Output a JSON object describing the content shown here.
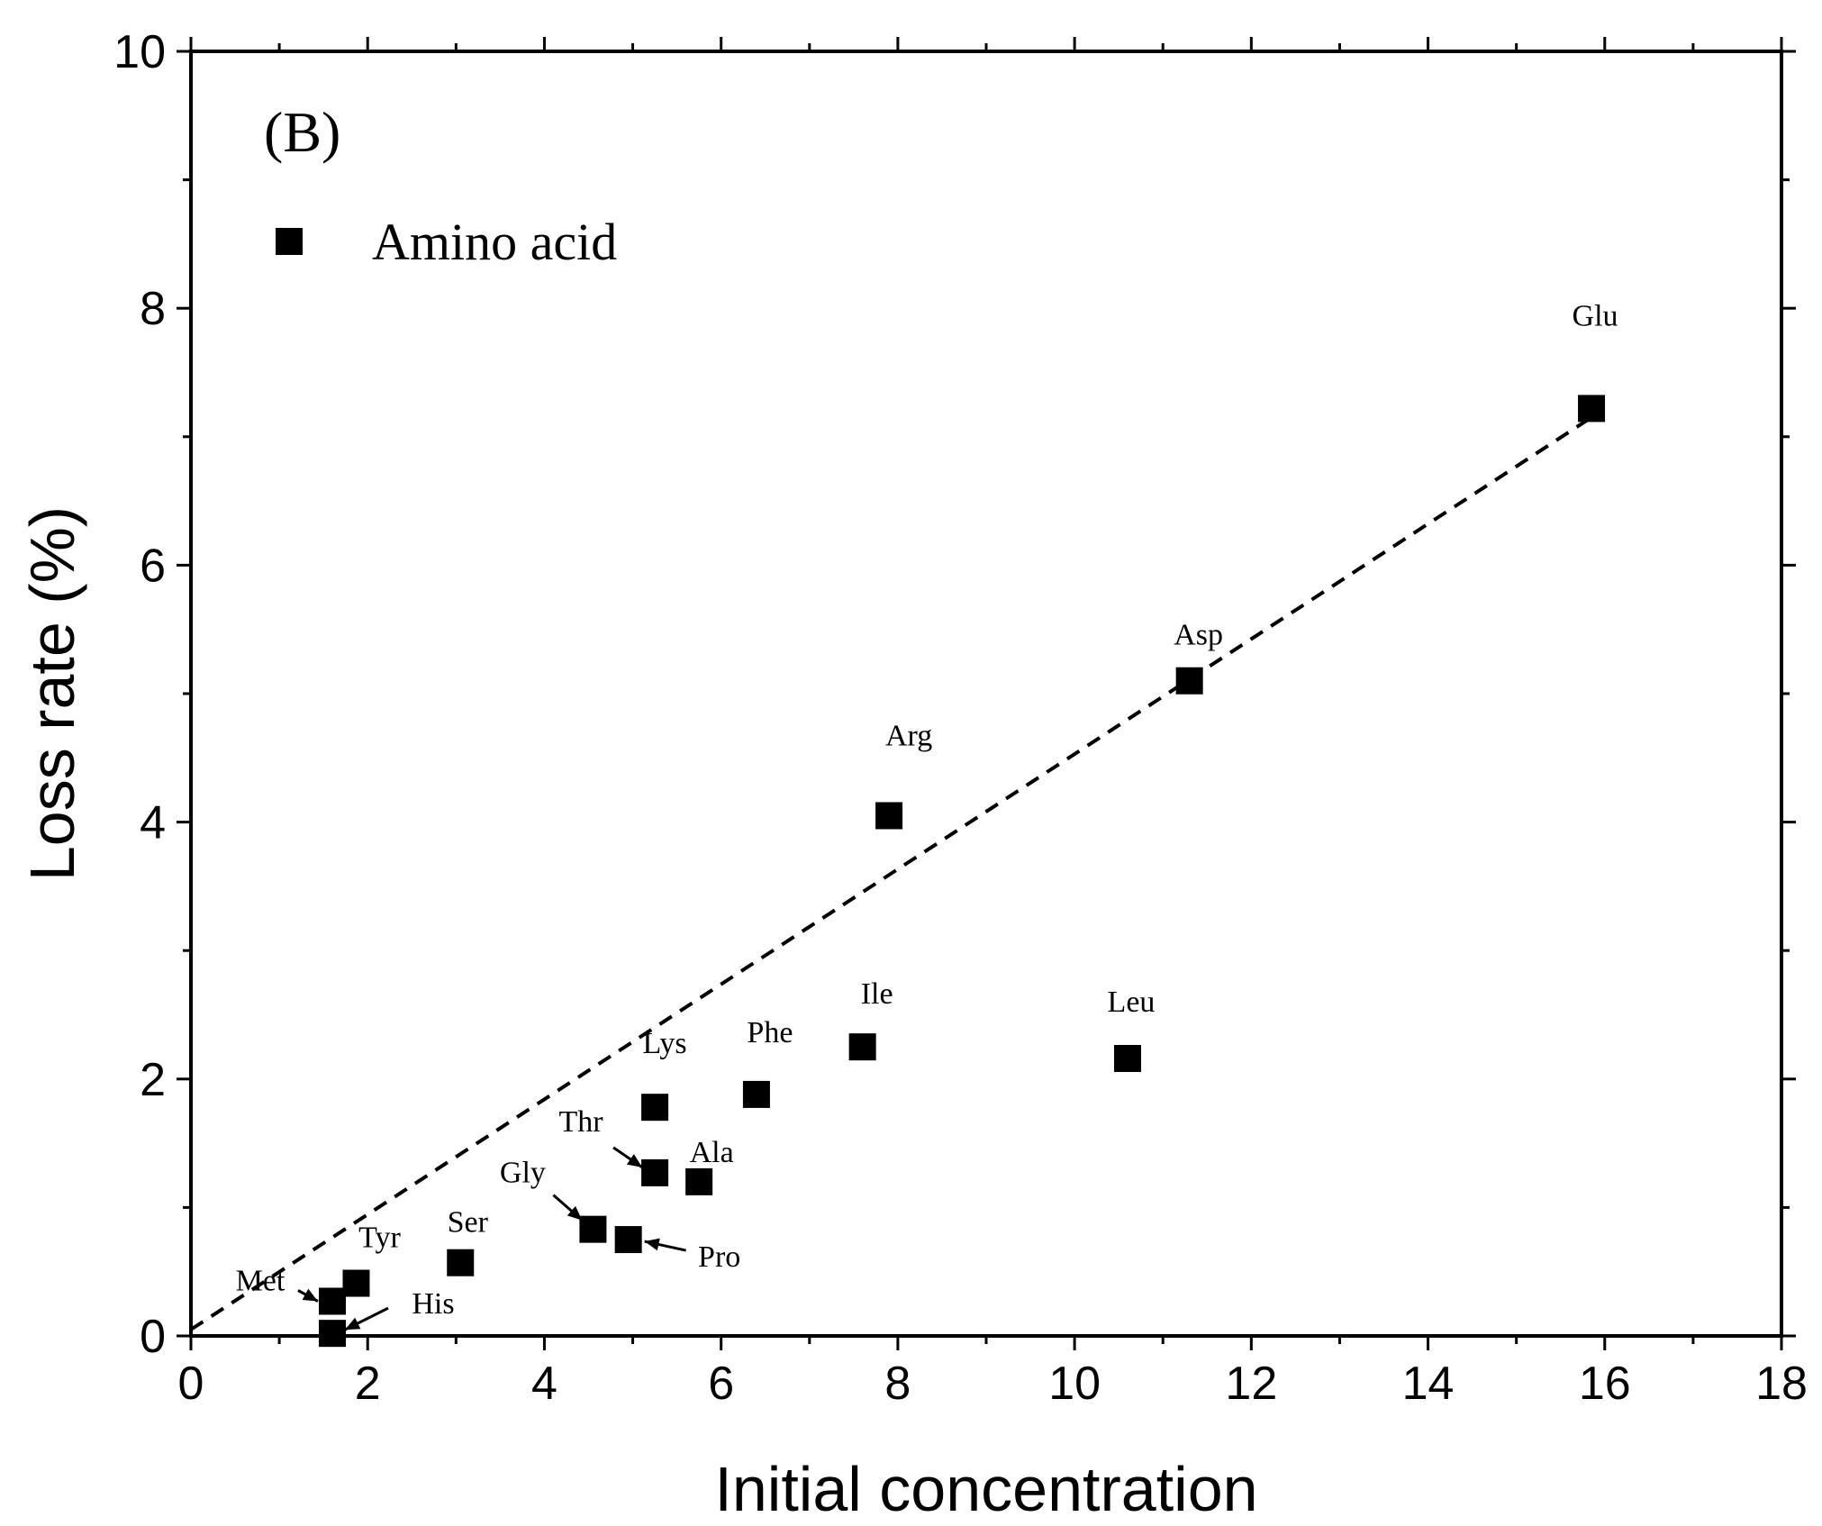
{
  "chart_data": {
    "type": "scatter",
    "panel_label": "(B)",
    "xlabel": "Initial concentration",
    "ylabel": "Loss rate (%)",
    "xlim": [
      0,
      18
    ],
    "ylim": [
      0,
      10
    ],
    "x_major_ticks": [
      0,
      2,
      4,
      6,
      8,
      10,
      12,
      14,
      16,
      18
    ],
    "y_major_ticks": [
      0,
      2,
      4,
      6,
      8,
      10
    ],
    "x_tick_labels": [
      "0",
      "2",
      "4",
      "6",
      "8",
      "10",
      "12",
      "14",
      "16",
      "18"
    ],
    "y_tick_labels": [
      "0",
      "2",
      "4",
      "6",
      "8",
      "10"
    ],
    "legend": {
      "position": "top-left",
      "entries": [
        "Amino acid"
      ]
    },
    "series": [
      {
        "name": "Amino acid",
        "marker": "square",
        "color": "#000000",
        "points": [
          {
            "label": "Met",
            "x": 1.6,
            "y": 0.27
          },
          {
            "label": "His",
            "x": 1.6,
            "y": 0.02
          },
          {
            "label": "Tyr",
            "x": 1.87,
            "y": 0.41
          },
          {
            "label": "Ser",
            "x": 3.05,
            "y": 0.57
          },
          {
            "label": "Gly",
            "x": 4.55,
            "y": 0.83
          },
          {
            "label": "Pro",
            "x": 4.95,
            "y": 0.75
          },
          {
            "label": "Thr",
            "x": 5.25,
            "y": 1.27
          },
          {
            "label": "Lys",
            "x": 5.25,
            "y": 1.78
          },
          {
            "label": "Ala",
            "x": 5.75,
            "y": 1.2
          },
          {
            "label": "Phe",
            "x": 6.4,
            "y": 1.88
          },
          {
            "label": "Ile",
            "x": 7.6,
            "y": 2.25
          },
          {
            "label": "Arg",
            "x": 7.9,
            "y": 4.05
          },
          {
            "label": "Leu",
            "x": 10.6,
            "y": 2.16
          },
          {
            "label": "Asp",
            "x": 11.3,
            "y": 5.1
          },
          {
            "label": "Glu",
            "x": 15.85,
            "y": 7.22
          }
        ]
      }
    ],
    "trendline": {
      "style": "dashed",
      "from": [
        0,
        0.05
      ],
      "to": [
        15.85,
        7.15
      ]
    }
  }
}
